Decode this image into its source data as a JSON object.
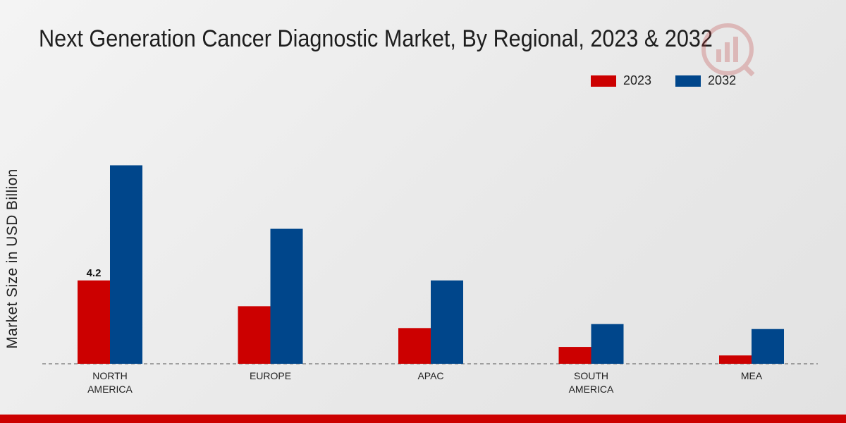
{
  "chart_data": {
    "type": "bar",
    "title": "Next Generation Cancer Diagnostic Market, By Regional, 2023 & 2032",
    "xlabel": "",
    "ylabel": "Market Size in USD Billion",
    "categories": [
      "NORTH AMERICA",
      "EUROPE",
      "APAC",
      "SOUTH AMERICA",
      "MEA"
    ],
    "category_lines": [
      [
        "NORTH",
        "AMERICA"
      ],
      [
        "EUROPE"
      ],
      [
        "APAC"
      ],
      [
        "SOUTH",
        "AMERICA"
      ],
      [
        "MEA"
      ]
    ],
    "series": [
      {
        "name": "2023",
        "color": "#cc0000",
        "values": [
          4.2,
          2.9,
          1.8,
          0.85,
          0.42
        ]
      },
      {
        "name": "2032",
        "color": "#00468b",
        "values": [
          10.0,
          6.8,
          4.2,
          2.0,
          1.75
        ]
      }
    ],
    "data_labels": [
      {
        "series": 0,
        "index": 0,
        "text": "4.2"
      }
    ],
    "ylim": [
      0,
      13
    ],
    "grid": false,
    "legend_position": "top-right"
  },
  "footer": {
    "accent_color": "#cc0000"
  }
}
